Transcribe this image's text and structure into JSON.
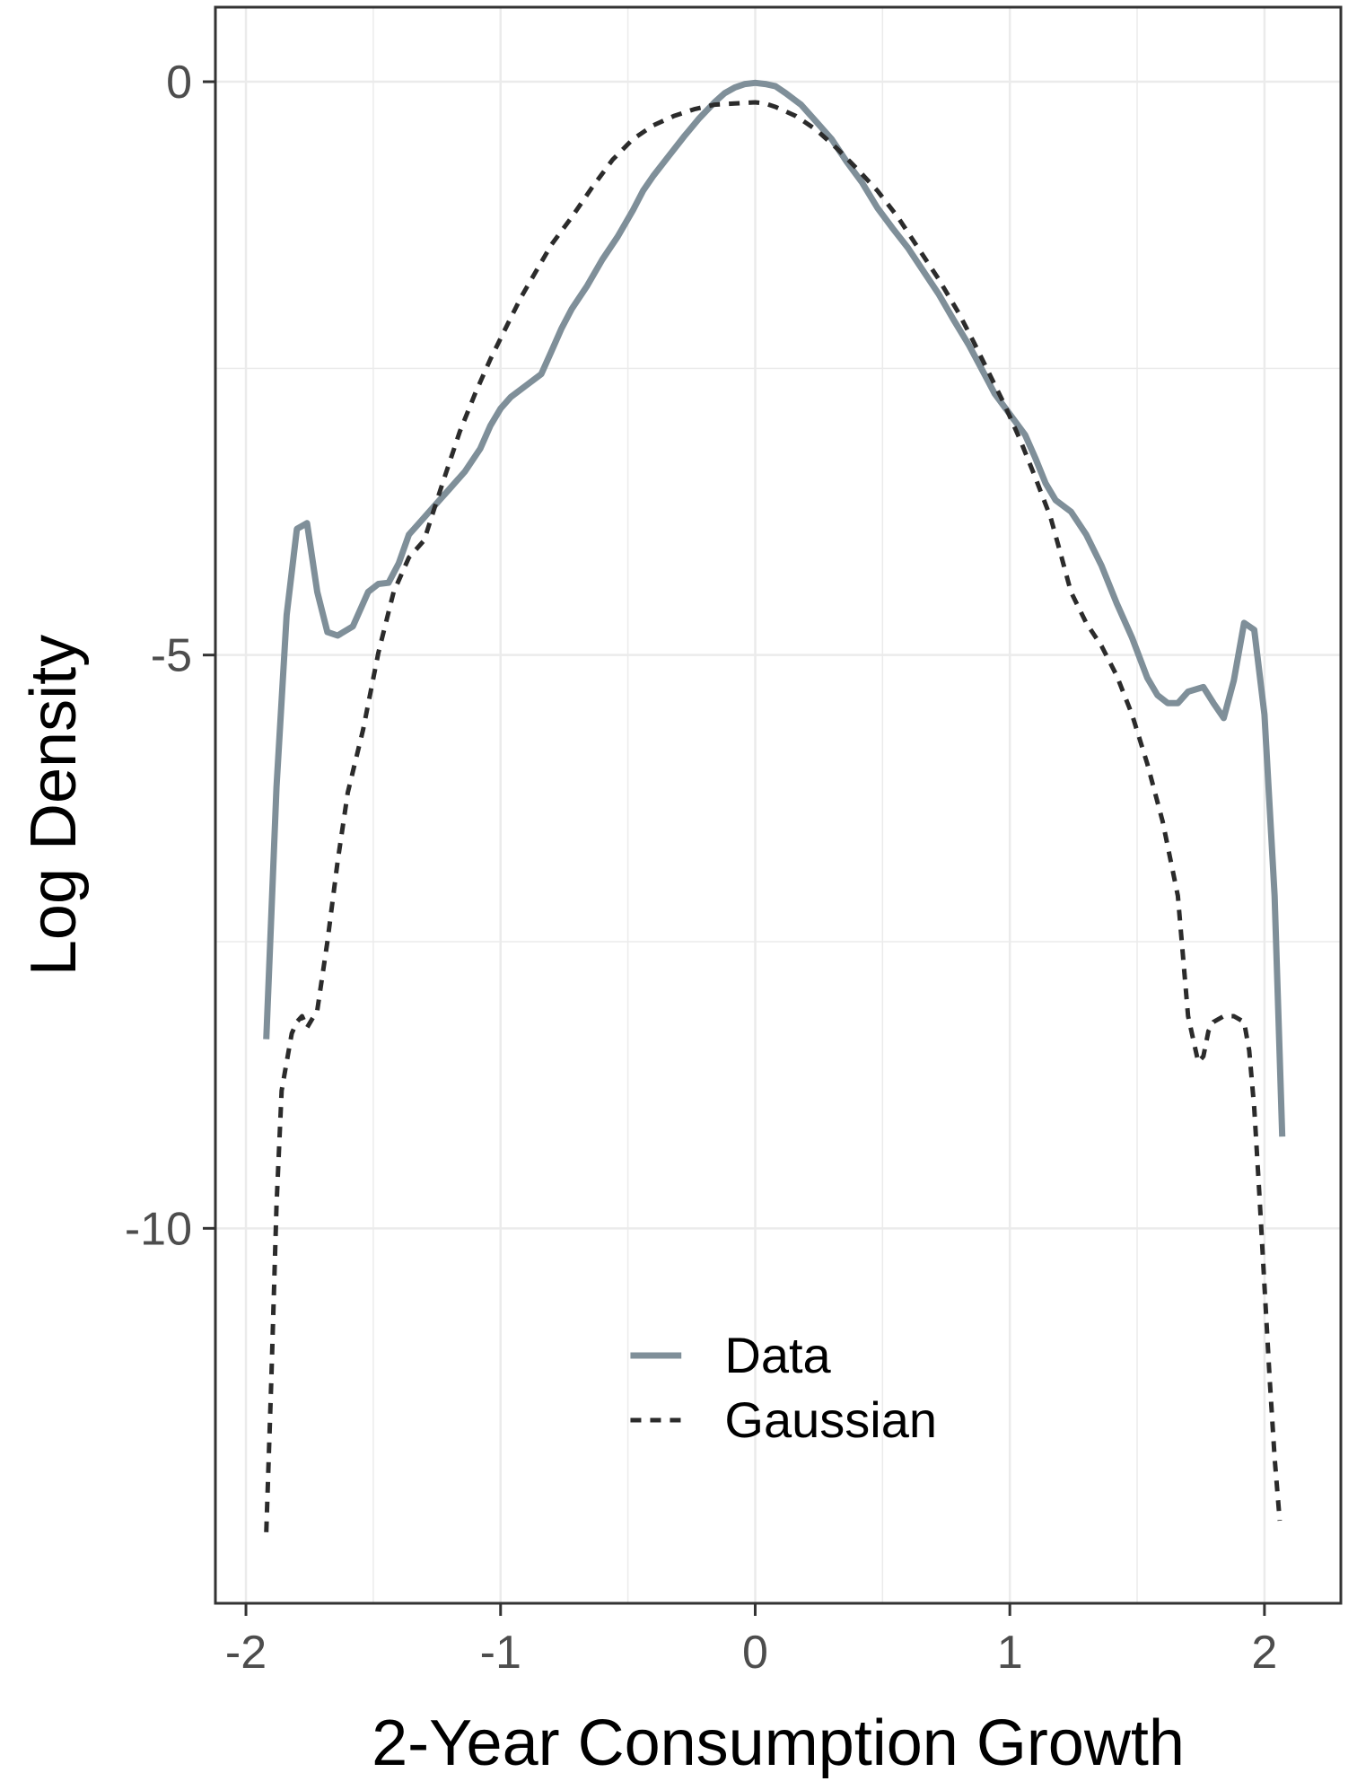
{
  "chart_data": {
    "type": "line",
    "xlabel": "2-Year Consumption Growth",
    "ylabel": "Log Density",
    "xlim": [
      -2.12,
      2.3
    ],
    "ylim": [
      -13.27,
      0.65
    ],
    "x_ticks": [
      -2,
      -1,
      0,
      1,
      2
    ],
    "x_tick_labels": [
      "-2",
      "-1",
      "0",
      "1",
      "2"
    ],
    "y_ticks": [
      0,
      -5,
      -10
    ],
    "y_tick_labels": [
      "0",
      "-5",
      "-10"
    ],
    "grid": true,
    "legend": {
      "position": "bottom-center",
      "entries": [
        "Data",
        "Gaussian"
      ]
    },
    "colors": {
      "data": "#7f8f99",
      "gaussian": "#2b2b2b",
      "panel_border": "#333333",
      "grid": "#ebebeb"
    },
    "series": [
      {
        "name": "Data",
        "style": "solid",
        "x": [
          -1.92,
          -1.88,
          -1.84,
          -1.8,
          -1.76,
          -1.72,
          -1.68,
          -1.64,
          -1.58,
          -1.52,
          -1.48,
          -1.44,
          -1.4,
          -1.36,
          -1.32,
          -1.26,
          -1.2,
          -1.14,
          -1.08,
          -1.04,
          -1.0,
          -0.96,
          -0.9,
          -0.84,
          -0.8,
          -0.76,
          -0.72,
          -0.66,
          -0.6,
          -0.54,
          -0.48,
          -0.44,
          -0.4,
          -0.34,
          -0.28,
          -0.22,
          -0.16,
          -0.12,
          -0.08,
          -0.04,
          0.0,
          0.04,
          0.08,
          0.12,
          0.18,
          0.24,
          0.3,
          0.36,
          0.42,
          0.48,
          0.54,
          0.6,
          0.66,
          0.72,
          0.78,
          0.84,
          0.9,
          0.94,
          1.0,
          1.06,
          1.1,
          1.14,
          1.18,
          1.24,
          1.3,
          1.36,
          1.42,
          1.48,
          1.54,
          1.58,
          1.62,
          1.66,
          1.7,
          1.76,
          1.8,
          1.84,
          1.88,
          1.92,
          1.96,
          2.0,
          2.04,
          2.07
        ],
        "y": [
          -8.35,
          -6.15,
          -4.65,
          -3.9,
          -3.85,
          -4.45,
          -4.8,
          -4.83,
          -4.75,
          -4.45,
          -4.38,
          -4.37,
          -4.2,
          -3.95,
          -3.85,
          -3.7,
          -3.55,
          -3.4,
          -3.2,
          -3.0,
          -2.85,
          -2.75,
          -2.65,
          -2.55,
          -2.35,
          -2.15,
          -1.98,
          -1.78,
          -1.55,
          -1.35,
          -1.12,
          -0.95,
          -0.82,
          -0.65,
          -0.48,
          -0.32,
          -0.18,
          -0.1,
          -0.05,
          -0.02,
          -0.01,
          -0.02,
          -0.04,
          -0.1,
          -0.2,
          -0.35,
          -0.5,
          -0.7,
          -0.88,
          -1.1,
          -1.28,
          -1.45,
          -1.65,
          -1.85,
          -2.08,
          -2.3,
          -2.55,
          -2.72,
          -2.9,
          -3.08,
          -3.28,
          -3.5,
          -3.65,
          -3.75,
          -3.95,
          -4.22,
          -4.55,
          -4.85,
          -5.2,
          -5.35,
          -5.42,
          -5.42,
          -5.32,
          -5.28,
          -5.42,
          -5.55,
          -5.22,
          -4.72,
          -4.78,
          -5.52,
          -7.1,
          -9.2
        ]
      },
      {
        "name": "Gaussian",
        "style": "dashed",
        "x": [
          -1.92,
          -1.9,
          -1.88,
          -1.86,
          -1.84,
          -1.82,
          -1.8,
          -1.78,
          -1.76,
          -1.72,
          -1.68,
          -1.64,
          -1.6,
          -1.54,
          -1.48,
          -1.42,
          -1.36,
          -1.3,
          -1.26,
          -1.22,
          -1.16,
          -1.1,
          -1.04,
          -0.98,
          -0.92,
          -0.86,
          -0.8,
          -0.72,
          -0.64,
          -0.56,
          -0.48,
          -0.4,
          -0.32,
          -0.24,
          -0.16,
          -0.08,
          0.0,
          0.04,
          0.08,
          0.16,
          0.24,
          0.32,
          0.4,
          0.48,
          0.56,
          0.64,
          0.72,
          0.8,
          0.86,
          0.92,
          0.98,
          1.04,
          1.1,
          1.16,
          1.2,
          1.24,
          1.3,
          1.36,
          1.42,
          1.48,
          1.54,
          1.6,
          1.66,
          1.7,
          1.74,
          1.76,
          1.78,
          1.8,
          1.84,
          1.88,
          1.92,
          1.94,
          1.96,
          1.98,
          2.0,
          2.02,
          2.04,
          2.06
        ],
        "y": [
          -12.65,
          -11.3,
          -9.8,
          -8.8,
          -8.55,
          -8.3,
          -8.2,
          -8.15,
          -8.25,
          -8.1,
          -7.5,
          -6.8,
          -6.2,
          -5.65,
          -4.98,
          -4.45,
          -4.15,
          -4.0,
          -3.72,
          -3.45,
          -3.05,
          -2.72,
          -2.42,
          -2.15,
          -1.88,
          -1.65,
          -1.42,
          -1.18,
          -0.92,
          -0.68,
          -0.5,
          -0.38,
          -0.3,
          -0.24,
          -0.2,
          -0.19,
          -0.18,
          -0.19,
          -0.22,
          -0.3,
          -0.42,
          -0.58,
          -0.76,
          -0.95,
          -1.18,
          -1.45,
          -1.72,
          -2.02,
          -2.28,
          -2.55,
          -2.82,
          -3.12,
          -3.45,
          -3.8,
          -4.12,
          -4.45,
          -4.72,
          -4.92,
          -5.18,
          -5.52,
          -5.95,
          -6.45,
          -7.1,
          -8.15,
          -8.55,
          -8.5,
          -8.28,
          -8.2,
          -8.15,
          -8.15,
          -8.2,
          -8.45,
          -8.95,
          -9.7,
          -10.5,
          -11.3,
          -12.0,
          -12.55
        ]
      }
    ]
  }
}
